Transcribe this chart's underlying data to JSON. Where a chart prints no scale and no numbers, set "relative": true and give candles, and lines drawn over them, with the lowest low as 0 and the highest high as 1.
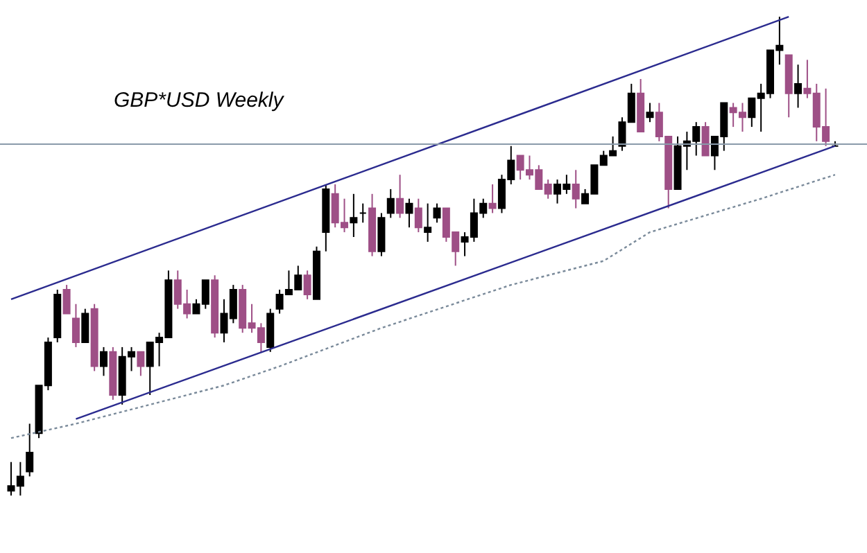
{
  "chart_data": {
    "type": "candlestick",
    "title": "GBP*USD Weekly",
    "relative": true,
    "categories": [
      null,
      null,
      null,
      null,
      null,
      null,
      null,
      null,
      null,
      null,
      null,
      null,
      null,
      null,
      null,
      null,
      null,
      null,
      null,
      null,
      null,
      null,
      null,
      null,
      null,
      null,
      null,
      null,
      null,
      null,
      null,
      null,
      null,
      null,
      null,
      null,
      null,
      null,
      null,
      null,
      null,
      null,
      null,
      null,
      null,
      null,
      null,
      null,
      null,
      null,
      null,
      null,
      null,
      null,
      null,
      null,
      null,
      null,
      null,
      null,
      null,
      null,
      null,
      null,
      null,
      null,
      null,
      null,
      null,
      null,
      null,
      null,
      null,
      null,
      null,
      null,
      null,
      null,
      null,
      null,
      null,
      null,
      null,
      null,
      null,
      null,
      null,
      null,
      null,
      null
    ],
    "ohlc": [
      [
        0.01,
        0.07,
        0,
        0.02
      ],
      [
        0.02,
        0.07,
        0,
        0.04
      ],
      [
        0.05,
        0.15,
        0.04,
        0.09
      ],
      [
        0.13,
        0.23,
        0.12,
        0.23
      ],
      [
        0.23,
        0.33,
        0.22,
        0.32
      ],
      [
        0.33,
        0.43,
        0.32,
        0.42
      ],
      [
        0.43,
        0.44,
        0.38,
        0.38
      ],
      [
        0.37,
        0.4,
        0.31,
        0.32
      ],
      [
        0.32,
        0.39,
        0.32,
        0.38
      ],
      [
        0.39,
        0.4,
        0.26,
        0.27
      ],
      [
        0.27,
        0.31,
        0.25,
        0.3
      ],
      [
        0.3,
        0.31,
        0.2,
        0.21
      ],
      [
        0.21,
        0.31,
        0.19,
        0.29
      ],
      [
        0.29,
        0.31,
        0.26,
        0.3
      ],
      [
        0.3,
        0.3,
        0.25,
        0.27
      ],
      [
        0.27,
        0.32,
        0.21,
        0.32
      ],
      [
        0.32,
        0.34,
        0.27,
        0.33
      ],
      [
        0.33,
        0.47,
        0.33,
        0.45
      ],
      [
        0.45,
        0.47,
        0.39,
        0.4
      ],
      [
        0.4,
        0.43,
        0.37,
        0.38
      ],
      [
        0.38,
        0.41,
        0.38,
        0.4
      ],
      [
        0.4,
        0.45,
        0.39,
        0.45
      ],
      [
        0.45,
        0.46,
        0.33,
        0.34
      ],
      [
        0.34,
        0.41,
        0.32,
        0.38
      ],
      [
        0.37,
        0.44,
        0.36,
        0.43
      ],
      [
        0.43,
        0.44,
        0.34,
        0.35
      ],
      [
        0.36,
        0.4,
        0.34,
        0.35
      ],
      [
        0.35,
        0.36,
        0.3,
        0.32
      ],
      [
        0.31,
        0.39,
        0.3,
        0.38
      ],
      [
        0.39,
        0.43,
        0.38,
        0.42
      ],
      [
        0.42,
        0.47,
        0.42,
        0.43
      ],
      [
        0.43,
        0.48,
        0.43,
        0.46
      ],
      [
        0.46,
        0.47,
        0.41,
        0.42
      ],
      [
        0.41,
        0.52,
        0.41,
        0.51
      ],
      [
        0.55,
        0.65,
        0.51,
        0.64
      ],
      [
        0.63,
        0.65,
        0.56,
        0.57
      ],
      [
        0.57,
        0.62,
        0.55,
        0.56
      ],
      [
        0.57,
        0.63,
        0.54,
        0.58
      ],
      [
        0.59,
        0.61,
        0.57,
        0.59
      ],
      [
        0.6,
        0.63,
        0.5,
        0.51
      ],
      [
        0.51,
        0.59,
        0.5,
        0.58
      ],
      [
        0.59,
        0.64,
        0.58,
        0.62
      ],
      [
        0.62,
        0.67,
        0.58,
        0.59
      ],
      [
        0.59,
        0.62,
        0.56,
        0.61
      ],
      [
        0.6,
        0.62,
        0.55,
        0.56
      ],
      [
        0.55,
        0.61,
        0.53,
        0.56
      ],
      [
        0.58,
        0.61,
        0.57,
        0.6
      ],
      [
        0.6,
        0.6,
        0.53,
        0.54
      ],
      [
        0.55,
        0.55,
        0.48,
        0.51
      ],
      [
        0.53,
        0.55,
        0.5,
        0.54
      ],
      [
        0.54,
        0.62,
        0.53,
        0.59
      ],
      [
        0.59,
        0.62,
        0.58,
        0.61
      ],
      [
        0.61,
        0.65,
        0.59,
        0.6
      ],
      [
        0.6,
        0.67,
        0.59,
        0.66
      ],
      [
        0.66,
        0.73,
        0.65,
        0.7
      ],
      [
        0.71,
        0.71,
        0.66,
        0.68
      ],
      [
        0.68,
        0.71,
        0.66,
        0.67
      ],
      [
        0.68,
        0.69,
        0.64,
        0.64
      ],
      [
        0.65,
        0.66,
        0.62,
        0.63
      ],
      [
        0.63,
        0.66,
        0.61,
        0.65
      ],
      [
        0.64,
        0.67,
        0.63,
        0.65
      ],
      [
        0.65,
        0.68,
        0.6,
        0.62
      ],
      [
        0.61,
        0.64,
        0.61,
        0.63
      ],
      [
        0.63,
        0.69,
        0.63,
        0.69
      ],
      [
        0.69,
        0.72,
        0.69,
        0.71
      ],
      [
        0.71,
        0.75,
        0.71,
        0.72
      ],
      [
        0.73,
        0.79,
        0.72,
        0.78
      ],
      [
        0.78,
        0.86,
        0.78,
        0.84
      ],
      [
        0.84,
        0.87,
        0.76,
        0.76
      ],
      [
        0.79,
        0.82,
        0.78,
        0.8
      ],
      [
        0.8,
        0.82,
        0.74,
        0.75
      ],
      [
        0.75,
        0.75,
        0.6,
        0.64
      ],
      [
        0.64,
        0.75,
        0.64,
        0.73
      ],
      [
        0.73,
        0.76,
        0.68,
        0.74
      ],
      [
        0.74,
        0.78,
        0.71,
        0.77
      ],
      [
        0.77,
        0.78,
        0.71,
        0.71
      ],
      [
        0.71,
        0.75,
        0.68,
        0.75
      ],
      [
        0.75,
        0.82,
        0.72,
        0.82
      ],
      [
        0.81,
        0.82,
        0.77,
        0.8
      ],
      [
        0.8,
        0.82,
        0.76,
        0.79
      ],
      [
        0.79,
        0.83,
        0.77,
        0.83
      ],
      [
        0.83,
        0.86,
        0.76,
        0.84
      ],
      [
        0.84,
        0.93,
        0.83,
        0.93
      ],
      [
        0.93,
        1.0,
        0.9,
        0.94
      ],
      [
        0.92,
        0.92,
        0.79,
        0.84
      ],
      [
        0.84,
        0.9,
        0.81,
        0.86
      ],
      [
        0.85,
        0.91,
        0.83,
        0.84
      ],
      [
        0.84,
        0.86,
        0.74,
        0.77
      ],
      [
        0.77,
        0.85,
        0.73,
        0.74
      ],
      [
        0.73,
        0.74,
        0.73,
        0.73
      ]
    ],
    "colors": [
      "#000000",
      "#000000",
      "#000000",
      "#000000",
      "#000000",
      "#000000",
      "#9e4f86",
      "#9e4f86",
      "#000000",
      "#9e4f86",
      "#000000",
      "#9e4f86",
      "#000000",
      "#000000",
      "#9e4f86",
      "#000000",
      "#000000",
      "#000000",
      "#9e4f86",
      "#9e4f86",
      "#000000",
      "#000000",
      "#9e4f86",
      "#000000",
      "#000000",
      "#9e4f86",
      "#9e4f86",
      "#9e4f86",
      "#000000",
      "#000000",
      "#000000",
      "#000000",
      "#9e4f86",
      "#000000",
      "#000000",
      "#9e4f86",
      "#9e4f86",
      "#000000",
      "#000000",
      "#9e4f86",
      "#000000",
      "#000000",
      "#9e4f86",
      "#000000",
      "#9e4f86",
      "#000000",
      "#000000",
      "#9e4f86",
      "#9e4f86",
      "#000000",
      "#000000",
      "#000000",
      "#9e4f86",
      "#000000",
      "#000000",
      "#9e4f86",
      "#9e4f86",
      "#9e4f86",
      "#9e4f86",
      "#000000",
      "#000000",
      "#9e4f86",
      "#000000",
      "#000000",
      "#000000",
      "#000000",
      "#000000",
      "#000000",
      "#9e4f86",
      "#000000",
      "#9e4f86",
      "#9e4f86",
      "#000000",
      "#000000",
      "#000000",
      "#9e4f86",
      "#000000",
      "#000000",
      "#9e4f86",
      "#9e4f86",
      "#000000",
      "#000000",
      "#000000",
      "#000000",
      "#9e4f86",
      "#000000",
      "#9e4f86",
      "#9e4f86",
      "#9e4f86",
      "#000000"
    ],
    "series": [
      {
        "type": "line",
        "values": [
          0.41,
          null,
          null,
          null,
          null,
          null,
          null,
          null,
          null,
          null,
          null,
          null,
          null,
          null,
          null,
          null,
          null,
          null,
          null,
          null,
          null,
          null,
          null,
          null,
          null,
          null,
          null,
          null,
          null,
          null,
          null,
          null,
          null,
          null,
          null,
          null,
          null,
          null,
          null,
          null,
          null,
          null,
          null,
          null,
          null,
          null,
          null,
          null,
          null,
          null,
          null,
          null,
          null,
          null,
          null,
          null,
          null,
          null,
          null,
          null,
          null,
          null,
          null,
          null,
          null,
          null,
          null,
          null,
          null,
          null,
          null,
          null,
          null,
          null,
          null,
          null,
          null,
          null,
          null,
          null,
          null,
          null,
          null,
          null,
          1.0,
          null,
          null,
          null,
          null,
          null
        ],
        "color": "#2b2b8f",
        "line_style": "solid"
      },
      {
        "type": "line",
        "values": [
          null,
          null,
          null,
          null,
          null,
          null,
          null,
          0.16,
          null,
          null,
          null,
          null,
          null,
          null,
          null,
          null,
          null,
          null,
          null,
          null,
          null,
          null,
          null,
          null,
          null,
          null,
          null,
          null,
          null,
          null,
          null,
          null,
          null,
          null,
          null,
          null,
          null,
          null,
          null,
          null,
          null,
          null,
          null,
          null,
          null,
          null,
          null,
          null,
          null,
          null,
          null,
          null,
          null,
          null,
          null,
          null,
          null,
          null,
          null,
          null,
          null,
          null,
          null,
          null,
          null,
          null,
          null,
          null,
          null,
          null,
          null,
          null,
          null,
          null,
          null,
          null,
          null,
          null,
          null,
          null,
          null,
          null,
          null,
          null,
          null,
          null,
          null,
          null,
          null,
          0.73
        ],
        "color": "#2b2b8f",
        "line_style": "solid"
      },
      {
        "type": "line",
        "values": [
          0.12,
          null,
          null,
          null,
          null,
          null,
          null,
          0.15,
          null,
          null,
          null,
          null,
          null,
          null,
          null,
          null,
          null,
          null,
          null,
          null,
          null,
          null,
          null,
          0.23,
          null,
          null,
          null,
          null,
          null,
          0.27,
          null,
          null,
          null,
          null,
          null,
          null,
          null,
          null,
          null,
          null,
          0.35,
          null,
          null,
          null,
          null,
          null,
          null,
          null,
          null,
          null,
          null,
          null,
          null,
          null,
          0.44,
          null,
          null,
          null,
          null,
          null,
          null,
          null,
          null,
          null,
          0.49,
          null,
          null,
          null,
          null,
          0.55,
          null,
          null,
          null,
          null,
          null,
          null,
          null,
          null,
          null,
          null,
          null,
          0.62,
          null,
          null,
          null,
          null,
          null,
          null,
          null,
          0.67
        ],
        "color": "#7a8a9a",
        "line_style": "dotted"
      }
    ],
    "ref_lines": [
      {
        "axis": "y",
        "value": 0.734,
        "color": "#8a9aaa"
      }
    ]
  }
}
